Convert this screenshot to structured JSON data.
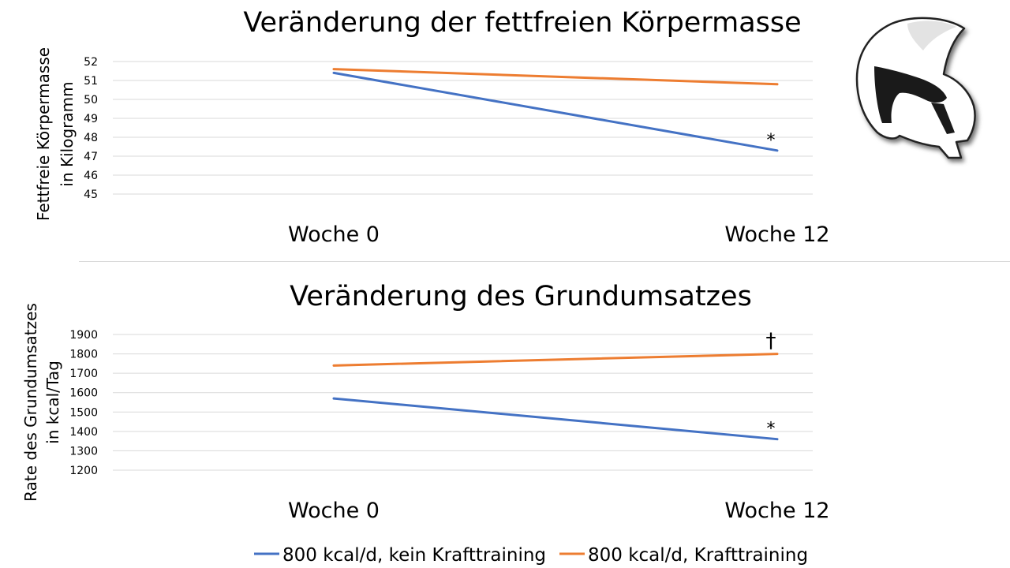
{
  "colors": {
    "series_blue": "#4472c4",
    "series_orange": "#ed7d31",
    "grid": "#d9d9d9"
  },
  "legend": {
    "items": [
      {
        "label": "800 kcal/d, kein Krafttraining",
        "color": "#4472c4"
      },
      {
        "label": "800 kcal/d, Krafttraining",
        "color": "#ed7d31"
      }
    ]
  },
  "logo": {
    "icon": "spartan-helmet-icon"
  },
  "chart_data": [
    {
      "type": "line",
      "title": "Veränderung der fettfreien Körpermasse",
      "ylabel_lines": [
        "Fettfreie Körpermasse",
        "in Kilogramm"
      ],
      "xlabel": "",
      "categories": [
        "Woche 0",
        "Woche 12"
      ],
      "y_ticks": [
        "52",
        "51",
        "50",
        "49",
        "48",
        "47",
        "46",
        "45"
      ],
      "ylim": [
        45,
        52
      ],
      "grid": true,
      "series": [
        {
          "name": "800 kcal/d, kein Krafttraining",
          "color": "#4472c4",
          "values": [
            51.4,
            47.3
          ]
        },
        {
          "name": "800 kcal/d, Krafttraining",
          "color": "#ed7d31",
          "values": [
            51.6,
            50.8
          ]
        }
      ],
      "annotations": [
        {
          "text": "*",
          "category": "Woche 12",
          "near_series": 0
        }
      ]
    },
    {
      "type": "line",
      "title": "Veränderung des Grundumsatzes",
      "ylabel_lines": [
        "Rate des Grundumsatzes",
        "in kcal/Tag"
      ],
      "xlabel": "",
      "categories": [
        "Woche 0",
        "Woche 12"
      ],
      "y_ticks": [
        "1900",
        "1800",
        "1700",
        "1600",
        "1500",
        "1400",
        "1300",
        "1200"
      ],
      "ylim": [
        1200,
        1900
      ],
      "grid": true,
      "series": [
        {
          "name": "800 kcal/d, kein Krafttraining",
          "color": "#4472c4",
          "values": [
            1570,
            1360
          ]
        },
        {
          "name": "800 kcal/d, Krafttraining",
          "color": "#ed7d31",
          "values": [
            1740,
            1800
          ]
        }
      ],
      "annotations": [
        {
          "text": "†",
          "category": "Woche 12",
          "near_series": 1
        },
        {
          "text": "*",
          "category": "Woche 12",
          "near_series": 0
        }
      ]
    }
  ]
}
